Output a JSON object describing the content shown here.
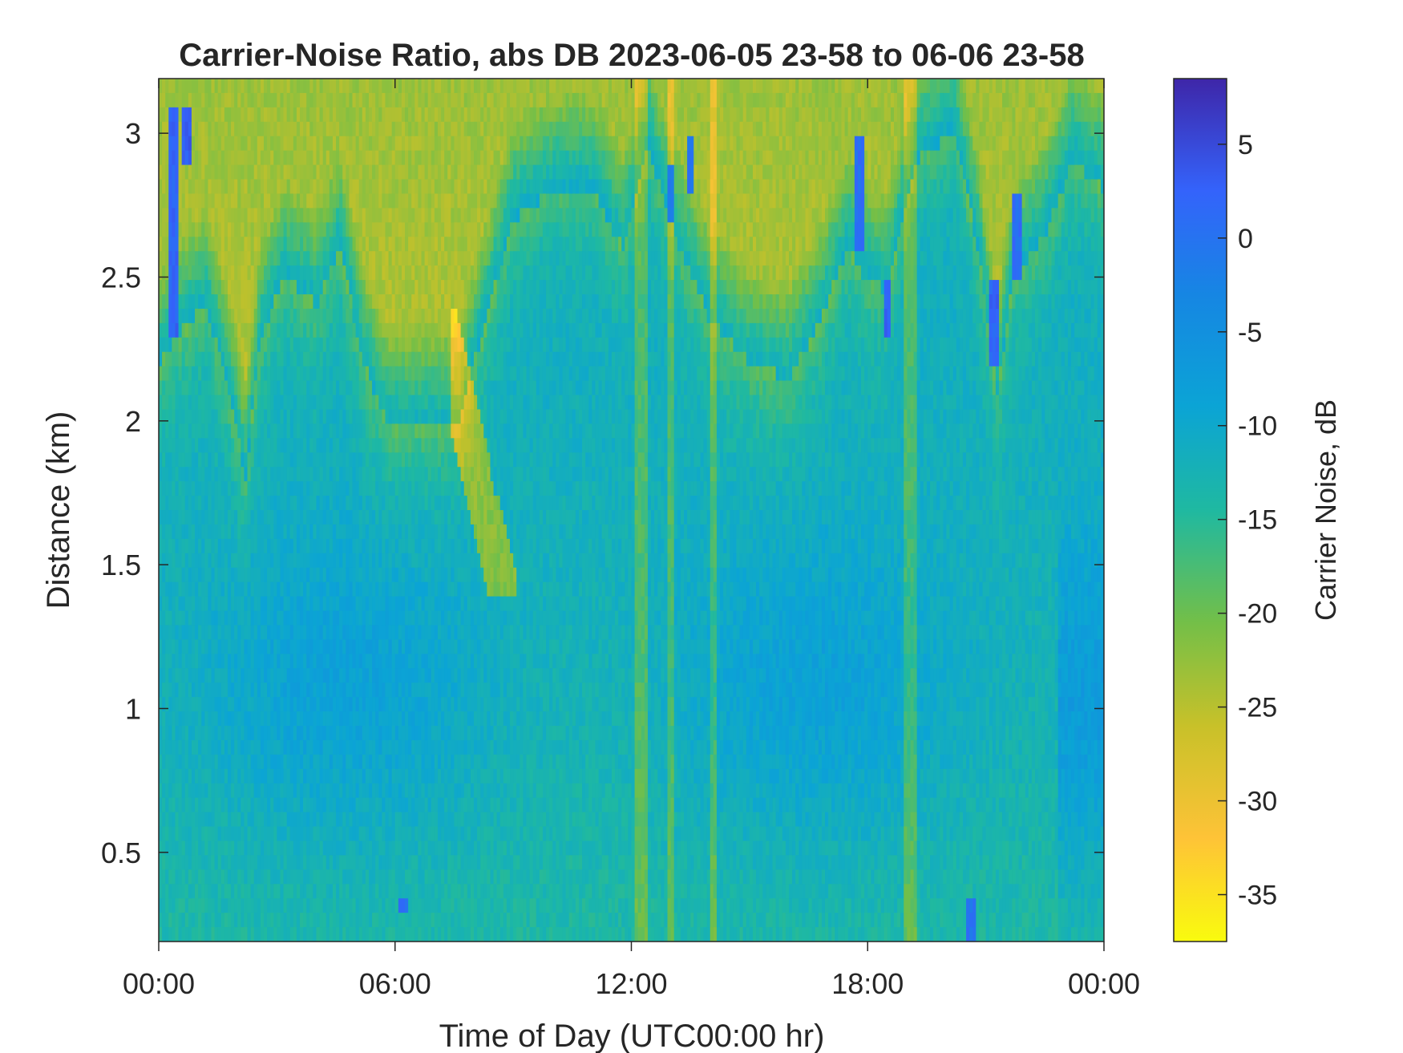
{
  "chart_data": {
    "type": "heatmap",
    "title": "Carrier-Noise Ratio, abs DB 2023-06-05 23-58 to 06-06 23-58",
    "xlabel": "Time of Day (UTC00:00 hr)",
    "ylabel": "Distance (km)",
    "x_range_hours": [
      0,
      24
    ],
    "x_ticks": [
      0,
      6,
      12,
      18,
      24
    ],
    "x_tick_labels": [
      "00:00",
      "06:00",
      "12:00",
      "18:00",
      "00:00"
    ],
    "ylim_km": [
      0.19,
      3.19
    ],
    "y_ticks": [
      0.5,
      1,
      1.5,
      2,
      2.5,
      3
    ],
    "y_tick_labels": [
      "0.5",
      "1",
      "1.5",
      "2",
      "2.5",
      "3"
    ],
    "colorbar": {
      "label": "Carrier Noise, dB",
      "range_db": [
        -37.5,
        8.5
      ],
      "ticks": [
        5,
        0,
        -5,
        -10,
        -15,
        -20,
        -25,
        -30,
        -35
      ],
      "tick_labels": [
        "5",
        "0",
        "-5",
        "-10",
        "-15",
        "-20",
        "-25",
        "-30",
        "-35"
      ],
      "colormap": "parula (reversed)"
    },
    "grid": false,
    "field_summary": {
      "z_units": "dB",
      "typical_low_altitude_db": -11,
      "typical_high_altitude_db": -28,
      "min_db": -37,
      "max_db": 7,
      "notes": "Weak-signal (yellow) regions in the upper range, strongest near 06:00-09:00 with a descending plume to ~1.4 km near 08:30; strong-signal (blue) streaks near 00:15, 13:00, 17:45, 18:30, 21:30 in the upper range; vertical streaks near 12:15, 13:00, 19:00."
    },
    "anomalies": [
      {
        "t_hours": 0.35,
        "z_range_km": [
          2.3,
          3.1
        ],
        "db": 2
      },
      {
        "t_hours": 0.7,
        "z_range_km": [
          2.9,
          3.1
        ],
        "db": 3
      },
      {
        "t_hours": 13.0,
        "z_range_km": [
          2.7,
          2.9
        ],
        "db": -1
      },
      {
        "t_hours": 13.5,
        "z_range_km": [
          2.8,
          3.0
        ],
        "db": 0
      },
      {
        "t_hours": 17.8,
        "z_range_km": [
          2.6,
          3.0
        ],
        "db": 1
      },
      {
        "t_hours": 18.5,
        "z_range_km": [
          2.3,
          2.5
        ],
        "db": 2
      },
      {
        "t_hours": 21.2,
        "z_range_km": [
          2.2,
          2.5
        ],
        "db": 2
      },
      {
        "t_hours": 21.8,
        "z_range_km": [
          2.5,
          2.8
        ],
        "db": 1
      },
      {
        "t_hours": 6.2,
        "z_range_km": [
          0.28,
          0.34
        ],
        "db": 0
      },
      {
        "t_hours": 20.6,
        "z_range_km": [
          0.2,
          0.36
        ],
        "db": 0
      }
    ]
  }
}
